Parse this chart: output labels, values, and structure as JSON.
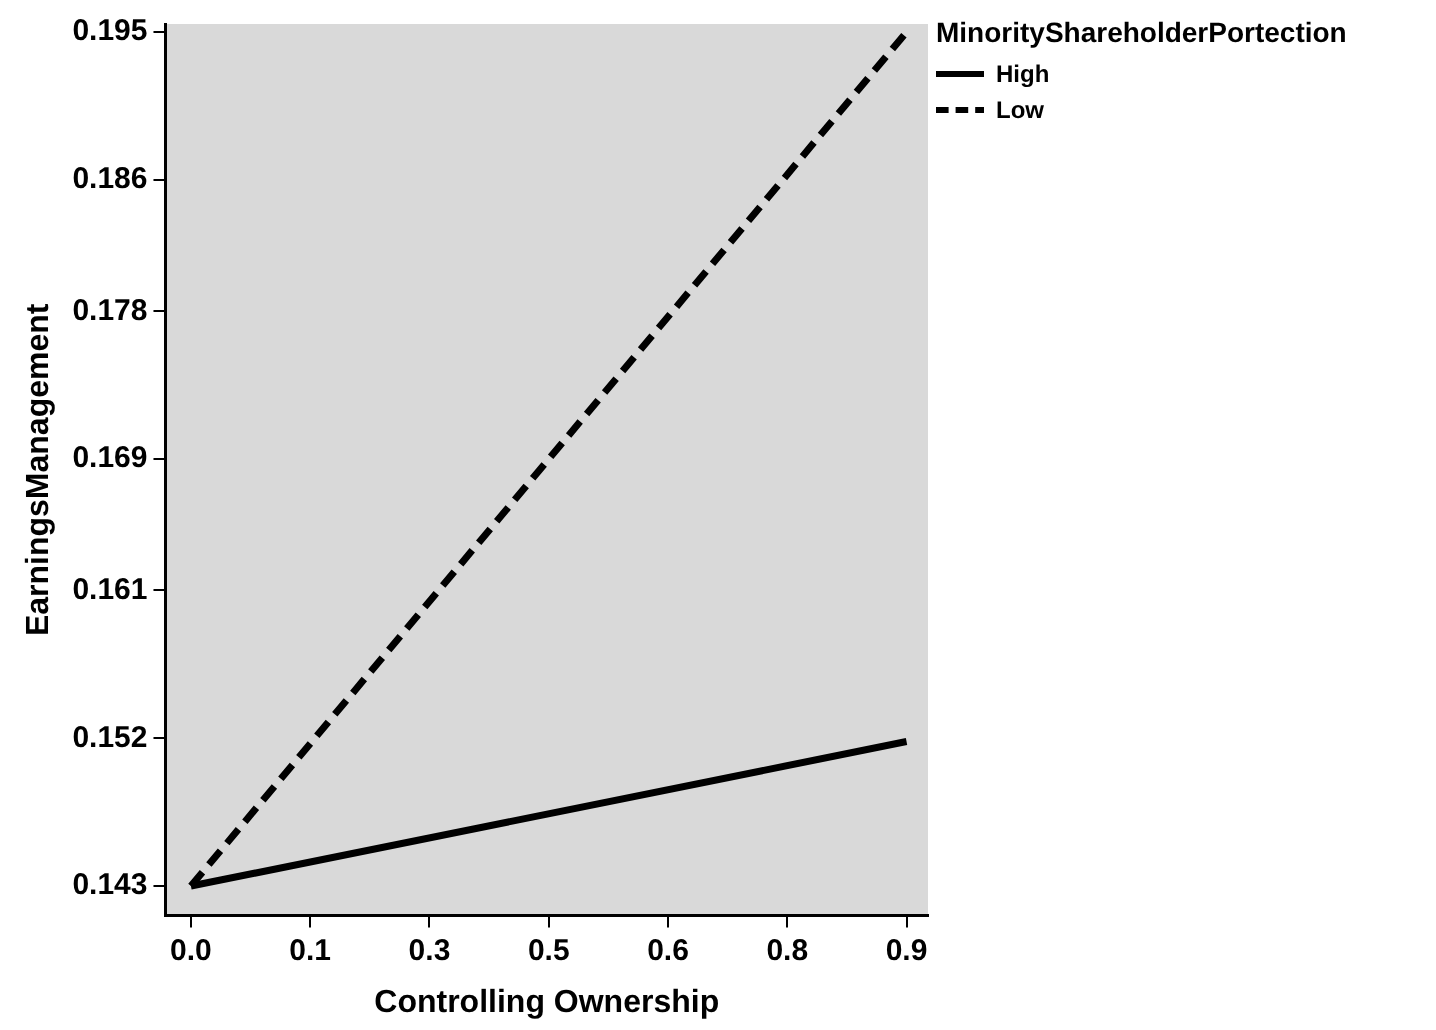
{
  "chart_data": {
    "type": "line",
    "xlabel": "Controlling Ownership",
    "ylabel": "EarningsManagement",
    "legend_title": "MinorityShareholderPortection",
    "legend": "top right",
    "x": [
      0,
      0.9
    ],
    "series": [
      {
        "name": "High",
        "color": "#000000",
        "line_style": "solid",
        "values": [
          0.143,
          0.1518
        ]
      },
      {
        "name": "Low",
        "color": "#000000",
        "line_style": "dashed",
        "values": [
          0.143,
          0.195
        ]
      }
    ],
    "xlim": [
      -0.032,
      0.927
    ],
    "ylim": [
      0.1412,
      0.1955
    ],
    "xticks": [
      {
        "value": 0,
        "label": "0.0"
      },
      {
        "value": 0.15,
        "label": "0.1"
      },
      {
        "value": 0.3,
        "label": "0.3"
      },
      {
        "value": 0.45,
        "label": "0.5"
      },
      {
        "value": 0.6,
        "label": "0.6"
      },
      {
        "value": 0.75,
        "label": "0.8"
      },
      {
        "value": 0.9,
        "label": "0.9"
      }
    ],
    "yticks": [
      0.143,
      0.152,
      0.161,
      0.169,
      0.178,
      0.186,
      0.195
    ],
    "grid": false,
    "marker": "none"
  }
}
